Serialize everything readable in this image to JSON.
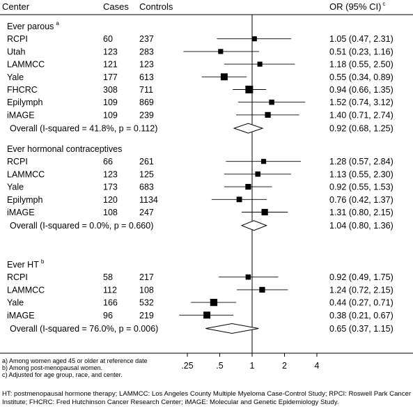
{
  "header": {
    "center": "Center",
    "cases": "Cases",
    "controls": "Controls",
    "or": "OR (95% CI)",
    "or_sup": "c"
  },
  "groups": [
    {
      "label": "Ever parous",
      "sup": "a",
      "rows": [
        {
          "center": "RCPI",
          "cases": "60",
          "controls": "237",
          "or_text": "1.05 (0.47, 2.31)",
          "or": 1.05,
          "lo": 0.47,
          "hi": 2.31,
          "weight": 0.45
        },
        {
          "center": "Utah",
          "cases": "123",
          "controls": "283",
          "or_text": "0.51 (0.23, 1.16)",
          "or": 0.51,
          "lo": 0.23,
          "hi": 1.16,
          "weight": 0.45
        },
        {
          "center": "LAMMCC",
          "cases": "121",
          "controls": "123",
          "or_text": "1.18 (0.55, 2.50)",
          "or": 1.18,
          "lo": 0.55,
          "hi": 2.5,
          "weight": 0.45
        },
        {
          "center": "Yale",
          "cases": "177",
          "controls": "613",
          "or_text": "0.55 (0.34, 0.89)",
          "or": 0.55,
          "lo": 0.34,
          "hi": 0.89,
          "weight": 0.85
        },
        {
          "center": "FHCRC",
          "cases": "308",
          "controls": "711",
          "or_text": "0.94 (0.66, 1.35)",
          "or": 0.94,
          "lo": 0.66,
          "hi": 1.35,
          "weight": 1.0
        },
        {
          "center": "Epilymph",
          "cases": "109",
          "controls": "869",
          "or_text": "1.52 (0.74, 3.12)",
          "or": 1.52,
          "lo": 0.74,
          "hi": 3.12,
          "weight": 0.5
        },
        {
          "center": "iMAGE",
          "cases": "109",
          "controls": "239",
          "or_text": "1.40 (0.71, 2.74)",
          "or": 1.4,
          "lo": 0.71,
          "hi": 2.74,
          "weight": 0.6
        }
      ],
      "overall": {
        "label": "Overall  (I-squared = 41.8%, p = 0.112)",
        "or_text": "0.92 (0.68, 1.25)",
        "or": 0.92,
        "lo": 0.68,
        "hi": 1.25
      }
    },
    {
      "label": "Ever hormonal contraceptives",
      "sup": "",
      "rows": [
        {
          "center": "RCPI",
          "cases": "66",
          "controls": "261",
          "or_text": "1.28 (0.57, 2.84)",
          "or": 1.28,
          "lo": 0.57,
          "hi": 2.84,
          "weight": 0.45
        },
        {
          "center": "LAMMCC",
          "cases": "123",
          "controls": "125",
          "or_text": "1.13 (0.55, 2.30)",
          "or": 1.13,
          "lo": 0.55,
          "hi": 2.3,
          "weight": 0.5
        },
        {
          "center": "Yale",
          "cases": "173",
          "controls": "683",
          "or_text": "0.92 (0.55, 1.53)",
          "or": 0.92,
          "lo": 0.55,
          "hi": 1.53,
          "weight": 0.6
        },
        {
          "center": "Epilymph",
          "cases": "120",
          "controls": "1134",
          "or_text": "0.76 (0.42, 1.37)",
          "or": 0.76,
          "lo": 0.42,
          "hi": 1.37,
          "weight": 0.55
        },
        {
          "center": "iMAGE",
          "cases": "108",
          "controls": "247",
          "or_text": "1.31 (0.80, 2.15)",
          "or": 1.31,
          "lo": 0.8,
          "hi": 2.15,
          "weight": 0.75
        }
      ],
      "overall": {
        "label": "Overall  (I-squared = 0.0%, p = 0.660)",
        "or_text": "1.04 (0.80, 1.36)",
        "or": 1.04,
        "lo": 0.8,
        "hi": 1.36
      }
    },
    {
      "label": "Ever HT",
      "sup": "b",
      "rows": [
        {
          "center": "RCPI",
          "cases": "58",
          "controls": "217",
          "or_text": "0.92 (0.49, 1.75)",
          "or": 0.92,
          "lo": 0.49,
          "hi": 1.75,
          "weight": 0.5
        },
        {
          "center": "LAMMCC",
          "cases": "112",
          "controls": "108",
          "or_text": "1.24 (0.72, 2.15)",
          "or": 1.24,
          "lo": 0.72,
          "hi": 2.15,
          "weight": 0.6
        },
        {
          "center": "Yale",
          "cases": "166",
          "controls": "532",
          "or_text": "0.44 (0.27, 0.71)",
          "or": 0.44,
          "lo": 0.27,
          "hi": 0.71,
          "weight": 0.9
        },
        {
          "center": "iMAGE",
          "cases": "96",
          "controls": "219",
          "or_text": "0.38 (0.21, 0.67)",
          "or": 0.38,
          "lo": 0.21,
          "hi": 0.67,
          "weight": 0.85
        }
      ],
      "overall": {
        "label": "Overall  (I-squared = 76.0%, p = 0.006)",
        "or_text": "0.65 (0.37, 1.15)",
        "or": 0.65,
        "lo": 0.37,
        "hi": 1.15
      }
    }
  ],
  "axis": {
    "ticks": [
      0.25,
      0.5,
      1,
      2,
      4
    ],
    "tick_labels": [
      ".25",
      ".5",
      "1",
      "2",
      "4"
    ],
    "scale": "log",
    "reference": 1
  },
  "notes": [
    "a) Among women aged 45 or older at reference date",
    "b) Among post-menopausal women.",
    "c) Adjusted for age group, race, and center."
  ],
  "footnote": "HT: postmenopausal hormone therapy; LAMMCC: Los Angeles County Multiple Myeloma Case-Control Study; RPCI: Roswell Park Cancer Institute; FHCRC: Fred Hutchinson Cancer Research Center; iMAGE: Molecular and Genetic Epidemiology Study.",
  "chart_data": {
    "type": "forest",
    "title": "",
    "xlabel": "",
    "ylabel": "",
    "x_scale": "log",
    "xlim": [
      0.18,
      4.6
    ],
    "reference_line": 1,
    "series": [
      {
        "name": "Ever parous",
        "y": [
          "RCPI",
          "Utah",
          "LAMMCC",
          "Yale",
          "FHCRC",
          "Epilymph",
          "iMAGE",
          "Overall"
        ],
        "values": [
          1.05,
          0.51,
          1.18,
          0.55,
          0.94,
          1.52,
          1.4,
          0.92
        ],
        "lower": [
          0.47,
          0.23,
          0.55,
          0.34,
          0.66,
          0.74,
          0.71,
          0.68
        ],
        "upper": [
          2.31,
          1.16,
          2.5,
          0.89,
          1.35,
          3.12,
          2.74,
          1.25
        ]
      },
      {
        "name": "Ever hormonal contraceptives",
        "y": [
          "RCPI",
          "LAMMCC",
          "Yale",
          "Epilymph",
          "iMAGE",
          "Overall"
        ],
        "values": [
          1.28,
          1.13,
          0.92,
          0.76,
          1.31,
          1.04
        ],
        "lower": [
          0.57,
          0.55,
          0.55,
          0.42,
          0.8,
          0.8
        ],
        "upper": [
          2.84,
          2.3,
          1.53,
          1.37,
          2.15,
          1.36
        ]
      },
      {
        "name": "Ever HT",
        "y": [
          "RCPI",
          "LAMMCC",
          "Yale",
          "iMAGE",
          "Overall"
        ],
        "values": [
          0.92,
          1.24,
          0.44,
          0.38,
          0.65
        ],
        "lower": [
          0.49,
          0.72,
          0.27,
          0.21,
          0.37
        ],
        "upper": [
          1.75,
          2.15,
          0.71,
          0.67,
          1.15
        ]
      }
    ]
  }
}
